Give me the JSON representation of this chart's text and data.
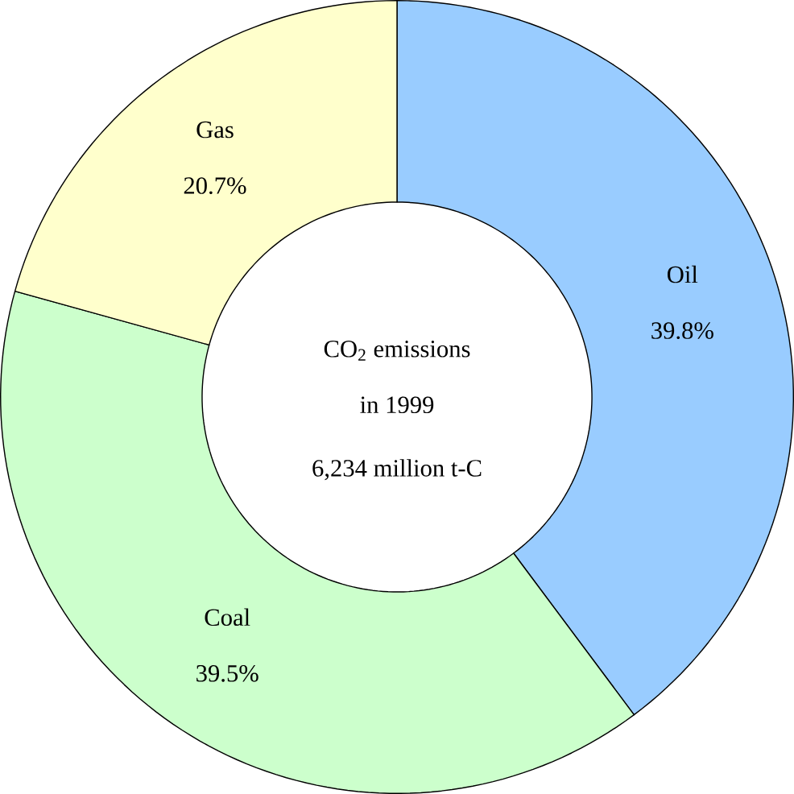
{
  "chart_data": {
    "type": "donut",
    "title": "CO$_{2}$ emissions in 1999",
    "subtitle": "6,234 million t-C",
    "categories": [
      "Oil",
      "Coal",
      "Gas"
    ],
    "values": [
      39.8,
      39.5,
      20.7
    ],
    "value_labels": [
      "39.8%",
      "39.5%",
      "20.7%"
    ],
    "colors": [
      "#99ccff",
      "#ccffcc",
      "#ffffcc"
    ]
  }
}
